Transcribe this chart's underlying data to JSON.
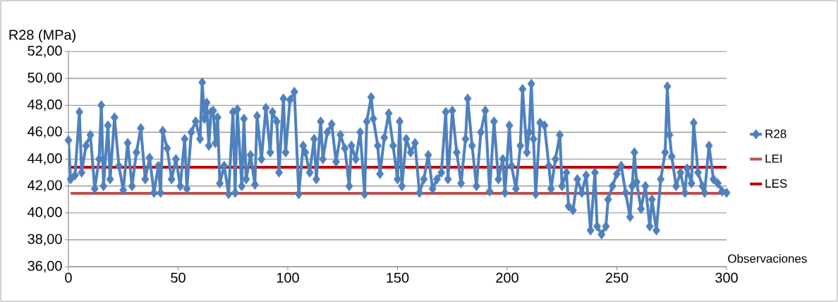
{
  "chart_data": {
    "type": "line",
    "xlabel": "Observaciones",
    "ylabel": "R28 (MPa)",
    "xlim": [
      0,
      300
    ],
    "ylim": [
      36,
      52
    ],
    "xticks": [
      0,
      50,
      100,
      150,
      200,
      250,
      300
    ],
    "yticks": [
      {
        "value": 36,
        "label": "36,00"
      },
      {
        "value": 38,
        "label": "38,00"
      },
      {
        "value": 40,
        "label": "40,00"
      },
      {
        "value": 42,
        "label": "42,00"
      },
      {
        "value": 44,
        "label": "44,00"
      },
      {
        "value": 46,
        "label": "46,00"
      },
      {
        "value": 48,
        "label": "48,00"
      },
      {
        "value": 50,
        "label": "50,00"
      },
      {
        "value": 52,
        "label": "52,00"
      }
    ],
    "grid": "y",
    "legend": "right",
    "series": [
      {
        "name": "R28",
        "color": "#4f81bd",
        "marker": "diamond",
        "x": [
          0,
          1,
          3,
          5,
          6,
          8,
          10,
          12,
          14,
          15,
          16,
          18,
          19,
          21,
          23,
          25,
          27,
          29,
          31,
          33,
          35,
          37,
          39,
          41,
          42,
          43,
          45,
          47,
          49,
          51,
          53,
          54,
          56,
          58,
          60,
          61,
          62,
          63,
          64,
          65,
          66,
          67,
          68,
          69,
          71,
          73,
          75,
          76,
          77,
          79,
          80,
          81,
          83,
          85,
          86,
          88,
          90,
          92,
          93,
          95,
          96,
          98,
          99,
          101,
          103,
          105,
          107,
          108,
          110,
          112,
          113,
          115,
          116,
          118,
          120,
          122,
          124,
          126,
          128,
          129,
          131,
          133,
          135,
          136,
          138,
          139,
          141,
          142,
          144,
          146,
          148,
          150,
          151,
          152,
          154,
          156,
          158,
          160,
          162,
          164,
          166,
          168,
          170,
          172,
          173,
          175,
          177,
          179,
          181,
          182,
          184,
          186,
          188,
          190,
          192,
          194,
          196,
          198,
          199,
          201,
          202,
          204,
          206,
          207,
          209,
          210,
          211,
          212,
          213,
          215,
          217,
          219,
          220,
          222,
          224,
          225,
          227,
          228,
          230,
          232,
          234,
          236,
          238,
          240,
          241,
          243,
          245,
          246,
          248,
          250,
          252,
          254,
          256,
          257,
          258,
          259,
          261,
          263,
          265,
          266,
          268,
          270,
          272,
          273,
          274,
          275,
          277,
          279,
          281,
          282,
          284,
          285,
          287,
          289,
          290,
          292,
          294,
          296,
          298,
          300
        ],
        "values": [
          45.4,
          42.5,
          42.8,
          47.5,
          43,
          45,
          45.8,
          41.8,
          44,
          48,
          42,
          46.5,
          42.5,
          47.1,
          43.5,
          41.7,
          45.2,
          42,
          44.5,
          46.3,
          42.5,
          44.1,
          41.5,
          43.5,
          41.5,
          46.1,
          44.8,
          42.5,
          44,
          42,
          45.5,
          41.8,
          46,
          46.8,
          45.5,
          49.7,
          47,
          48.2,
          45,
          47.5,
          47.6,
          45.2,
          47.1,
          42.2,
          43.5,
          41.4,
          47.5,
          41.5,
          47.7,
          42,
          47,
          42.5,
          44.3,
          42.1,
          47.2,
          44,
          47.8,
          44.5,
          47.5,
          46.8,
          43,
          48.5,
          44.5,
          48.4,
          49,
          41.4,
          45,
          44.5,
          43,
          45.5,
          42.5,
          46.8,
          44,
          46,
          46.6,
          43.8,
          45.8,
          44.8,
          42,
          45,
          44,
          46,
          41.4,
          46.8,
          48.6,
          47,
          45,
          42.9,
          45.6,
          47.4,
          45,
          42.5,
          46.8,
          42,
          45.5,
          44.5,
          45.2,
          41.5,
          42.5,
          44.3,
          41.8,
          42.5,
          43,
          47.5,
          42.5,
          47.6,
          44.5,
          42.2,
          45.5,
          48.5,
          45,
          42,
          46,
          47.6,
          41.6,
          46.8,
          42.5,
          44,
          41.5,
          46.5,
          43.5,
          41.8,
          45,
          49.2,
          44.5,
          46,
          49.6,
          45.5,
          41.4,
          46.7,
          46.5,
          43.5,
          41.8,
          44,
          45.8,
          42,
          43,
          40.5,
          40.2,
          42.5,
          41.5,
          42.8,
          38.7,
          43,
          39,
          38.4,
          39,
          41,
          42,
          42.9,
          43.5,
          41.5,
          39.7,
          42,
          44.5,
          42.3,
          40.3,
          42,
          39,
          41,
          38.7,
          42.5,
          44.5,
          49.4,
          45.8,
          44.2,
          42,
          43,
          41.5,
          43.3,
          42.2,
          46.7,
          43,
          42,
          41.5,
          45,
          42.5,
          42.2,
          41.6,
          41.5
        ]
      },
      {
        "name": "LEI",
        "color": "#c0504d",
        "marker": "none",
        "x": [
          1,
          300
        ],
        "values": [
          41.45,
          41.45
        ]
      },
      {
        "name": "LES",
        "color": "#c00000",
        "marker": "none",
        "x": [
          1,
          300
        ],
        "values": [
          43.4,
          43.4
        ]
      }
    ]
  }
}
